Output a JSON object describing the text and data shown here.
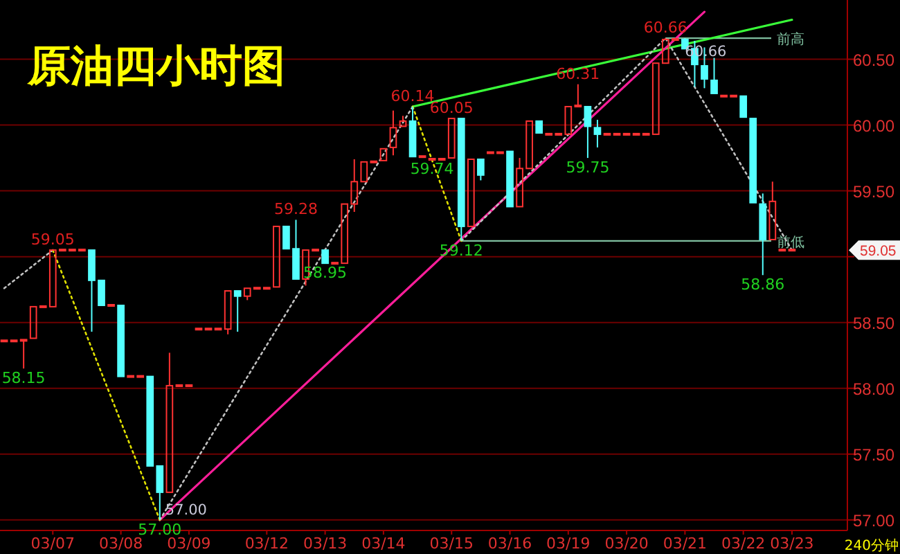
{
  "chart_data": {
    "type": "candlestick",
    "title": "原油四小时图",
    "categories": [
      null,
      null,
      null,
      null,
      null,
      "03/07",
      null,
      null,
      null,
      null,
      null,
      null,
      "03/08",
      null,
      null,
      null,
      null,
      null,
      null,
      "03/09",
      null,
      null,
      null,
      null,
      null,
      null,
      null,
      "03/12",
      null,
      null,
      null,
      null,
      null,
      "03/13",
      null,
      null,
      null,
      null,
      null,
      "03/14",
      null,
      null,
      null,
      null,
      null,
      null,
      "03/15",
      null,
      null,
      null,
      null,
      null,
      "03/16",
      null,
      null,
      null,
      null,
      null,
      "03/19",
      null,
      null,
      null,
      null,
      null,
      "03/20",
      null,
      null,
      null,
      null,
      null,
      "03/21",
      null,
      null,
      null,
      null,
      null,
      "03/22",
      null,
      null,
      null,
      null,
      "03/23"
    ],
    "ohlc": [
      [
        58.36,
        58.36,
        58.36,
        58.36
      ],
      [
        58.36,
        58.36,
        58.36,
        58.36
      ],
      [
        58.36,
        58.37,
        58.15,
        58.37
      ],
      [
        58.38,
        58.62,
        58.38,
        58.62
      ],
      [
        58.62,
        58.62,
        58.62,
        58.62
      ],
      [
        58.62,
        59.05,
        58.62,
        59.05
      ],
      [
        59.05,
        59.05,
        59.05,
        59.05
      ],
      [
        59.05,
        59.05,
        59.05,
        59.05
      ],
      [
        59.05,
        59.05,
        59.05,
        59.05
      ],
      [
        59.05,
        59.05,
        58.43,
        58.82
      ],
      [
        58.82,
        58.82,
        58.63,
        58.63
      ],
      [
        58.63,
        58.63,
        58.63,
        58.63
      ],
      [
        58.63,
        58.63,
        58.09,
        58.09
      ],
      [
        58.09,
        58.09,
        58.09,
        58.09
      ],
      [
        58.09,
        58.09,
        58.09,
        58.09
      ],
      [
        58.09,
        58.09,
        57.41,
        57.41
      ],
      [
        57.41,
        57.41,
        57.0,
        57.21
      ],
      [
        57.21,
        58.27,
        57.21,
        58.02
      ],
      [
        58.02,
        58.02,
        58.02,
        58.02
      ],
      [
        58.02,
        58.02,
        58.02,
        58.02
      ],
      [
        58.45,
        58.45,
        58.45,
        58.45
      ],
      [
        58.45,
        58.45,
        58.45,
        58.45
      ],
      [
        58.45,
        58.45,
        58.45,
        58.45
      ],
      [
        58.45,
        58.74,
        58.41,
        58.74
      ],
      [
        58.74,
        58.74,
        58.43,
        58.7
      ],
      [
        58.7,
        58.76,
        58.67,
        58.76
      ],
      [
        58.76,
        58.76,
        58.76,
        58.76
      ],
      [
        58.76,
        58.76,
        58.76,
        58.76
      ],
      [
        58.77,
        59.23,
        58.77,
        59.23
      ],
      [
        59.23,
        59.23,
        59.06,
        59.06
      ],
      [
        59.06,
        59.28,
        58.83,
        58.83
      ],
      [
        58.83,
        59.05,
        58.78,
        59.05
      ],
      [
        59.05,
        59.05,
        59.05,
        59.05
      ],
      [
        59.05,
        59.05,
        58.95,
        58.95
      ],
      [
        58.95,
        58.95,
        58.95,
        58.95
      ],
      [
        58.95,
        59.4,
        58.95,
        59.4
      ],
      [
        59.4,
        59.74,
        59.34,
        59.57
      ],
      [
        59.57,
        59.72,
        59.57,
        59.72
      ],
      [
        59.72,
        59.72,
        59.72,
        59.72
      ],
      [
        59.73,
        59.82,
        59.73,
        59.82
      ],
      [
        59.83,
        60.11,
        59.77,
        59.98
      ],
      [
        59.99,
        60.07,
        59.99,
        60.03
      ],
      [
        60.03,
        60.14,
        59.76,
        59.76
      ],
      [
        59.76,
        59.76,
        59.76,
        59.76
      ],
      [
        59.74,
        59.74,
        59.74,
        59.74
      ],
      [
        59.74,
        59.74,
        59.74,
        59.74
      ],
      [
        59.75,
        60.05,
        59.75,
        60.05
      ],
      [
        60.05,
        60.05,
        59.12,
        59.23
      ],
      [
        59.23,
        59.74,
        59.23,
        59.74
      ],
      [
        59.74,
        59.74,
        59.58,
        59.62
      ],
      [
        59.79,
        59.79,
        59.79,
        59.79
      ],
      [
        59.79,
        59.79,
        59.79,
        59.79
      ],
      [
        59.8,
        59.8,
        59.38,
        59.38
      ],
      [
        59.38,
        59.75,
        59.38,
        59.67
      ],
      [
        59.67,
        60.03,
        59.67,
        60.03
      ],
      [
        60.03,
        60.03,
        59.94,
        59.94
      ],
      [
        59.93,
        59.93,
        59.93,
        59.93
      ],
      [
        59.93,
        59.93,
        59.93,
        59.93
      ],
      [
        59.93,
        60.14,
        59.93,
        60.14
      ],
      [
        60.14,
        60.31,
        60.14,
        60.15
      ],
      [
        60.14,
        60.14,
        59.75,
        59.99
      ],
      [
        59.98,
        60.04,
        59.83,
        59.93
      ],
      [
        59.93,
        59.93,
        59.93,
        59.93
      ],
      [
        59.93,
        59.93,
        59.93,
        59.93
      ],
      [
        59.93,
        59.93,
        59.93,
        59.93
      ],
      [
        59.93,
        59.93,
        59.93,
        59.93
      ],
      [
        59.93,
        59.93,
        59.93,
        59.93
      ],
      [
        59.93,
        60.47,
        59.93,
        60.47
      ],
      [
        60.47,
        60.66,
        60.47,
        60.65
      ],
      [
        60.65,
        60.65,
        60.65,
        60.65
      ],
      [
        60.65,
        60.66,
        60.58,
        60.58
      ],
      [
        60.58,
        60.64,
        60.29,
        60.46
      ],
      [
        60.45,
        60.59,
        60.28,
        60.35
      ],
      [
        60.34,
        60.51,
        60.24,
        60.24
      ],
      [
        60.22,
        60.22,
        60.22,
        60.22
      ],
      [
        60.22,
        60.22,
        60.22,
        60.22
      ],
      [
        60.22,
        60.22,
        60.06,
        60.06
      ],
      [
        60.05,
        60.05,
        59.41,
        59.41
      ],
      [
        59.4,
        59.48,
        58.86,
        59.13
      ],
      [
        59.13,
        59.57,
        59.13,
        59.42
      ],
      [
        59.05,
        59.05,
        59.05,
        59.05
      ],
      [
        59.05,
        59.05,
        59.05,
        59.05
      ]
    ],
    "ylim": [
      56.92,
      60.95
    ],
    "yticks": [
      {
        "value": 57,
        "label": "57.00"
      },
      {
        "value": 57.5,
        "label": "57.50"
      },
      {
        "value": 58,
        "label": "58.00"
      },
      {
        "value": 58.5,
        "label": "58.50"
      },
      {
        "value": 59,
        "label": null
      },
      {
        "value": 59.5,
        "label": "59.50"
      },
      {
        "value": 60,
        "label": "60.00"
      },
      {
        "value": 60.5,
        "label": "60.50"
      }
    ],
    "grid": "y",
    "series": [
      {
        "type": "line",
        "color": "#39ff39",
        "values": [
          null,
          null,
          null,
          null,
          null,
          null,
          null,
          null,
          null,
          null,
          null,
          null,
          null,
          null,
          null,
          null,
          null,
          null,
          null,
          null,
          null,
          null,
          null,
          null,
          null,
          null,
          null,
          null,
          null,
          null,
          null,
          null,
          null,
          null,
          null,
          null,
          null,
          null,
          null,
          null,
          null,
          null,
          60.14,
          null,
          null,
          null,
          null,
          null,
          null,
          null,
          null,
          null,
          null,
          null,
          null,
          null,
          null,
          null,
          null,
          null,
          null,
          null,
          null,
          null,
          null,
          null,
          null,
          null,
          null,
          null,
          null,
          null,
          null,
          null,
          null,
          null,
          null,
          null,
          null,
          null,
          null,
          60.8
        ]
      },
      {
        "type": "line",
        "color": "#ff1e9a",
        "values": [
          null,
          null,
          null,
          null,
          null,
          null,
          null,
          null,
          null,
          null,
          null,
          null,
          null,
          null,
          null,
          null,
          57.0,
          null,
          null,
          null,
          null,
          null,
          null,
          null,
          null,
          null,
          null,
          null,
          null,
          null,
          null,
          null,
          null,
          null,
          null,
          null,
          null,
          null,
          null,
          null,
          null,
          null,
          null,
          null,
          null,
          null,
          null,
          null,
          null,
          null,
          null,
          null,
          null,
          null,
          null,
          null,
          null,
          null,
          null,
          null,
          null,
          null,
          null,
          null,
          null,
          null,
          null,
          null,
          null,
          null,
          null,
          null,
          60.86,
          null,
          null,
          null,
          null,
          null,
          null,
          null,
          null,
          null
        ]
      },
      {
        "type": "line",
        "color": "#c0c0c0",
        "line_style": "dotted",
        "values": [
          58.76,
          null,
          null,
          null,
          null,
          59.05,
          null,
          null,
          null,
          null,
          null,
          null,
          null,
          null,
          null,
          null,
          null,
          null,
          null,
          null,
          null,
          null,
          null,
          null,
          null,
          null,
          null,
          null,
          null,
          null,
          null,
          null,
          null,
          null,
          null,
          null,
          null,
          null,
          null,
          null,
          null,
          null,
          null,
          null,
          null,
          null,
          null,
          null,
          null,
          null,
          null,
          null,
          null,
          null,
          null,
          null,
          null,
          null,
          null,
          null,
          null,
          null,
          null,
          null,
          null,
          null,
          null,
          null,
          null,
          null,
          null,
          null,
          null,
          null,
          null,
          null,
          null,
          null,
          null,
          null,
          null,
          null
        ]
      },
      {
        "type": "line",
        "color": "#c0c0c0",
        "line_style": "dotted",
        "values": [
          null,
          null,
          null,
          null,
          null,
          null,
          null,
          null,
          null,
          null,
          null,
          null,
          null,
          null,
          null,
          null,
          57.0,
          null,
          null,
          null,
          null,
          null,
          null,
          null,
          null,
          null,
          null,
          null,
          null,
          null,
          null,
          null,
          null,
          null,
          null,
          null,
          null,
          null,
          null,
          null,
          null,
          null,
          60.14,
          null,
          null,
          null,
          null,
          null,
          null,
          null,
          null,
          null,
          null,
          null,
          null,
          null,
          null,
          null,
          null,
          null,
          null,
          null,
          null,
          null,
          null,
          null,
          null,
          null,
          null,
          null,
          null,
          null,
          null,
          null,
          null,
          null,
          null,
          null,
          null,
          null,
          null,
          null
        ]
      },
      {
        "type": "line",
        "color": "#c0c0c0",
        "line_style": "dotted",
        "values": [
          null,
          null,
          null,
          null,
          null,
          null,
          null,
          null,
          null,
          null,
          null,
          null,
          null,
          null,
          null,
          null,
          null,
          null,
          null,
          null,
          null,
          null,
          null,
          null,
          null,
          null,
          null,
          null,
          null,
          null,
          null,
          null,
          null,
          null,
          null,
          null,
          null,
          null,
          null,
          null,
          null,
          null,
          null,
          null,
          null,
          null,
          null,
          59.12,
          null,
          null,
          null,
          null,
          null,
          null,
          null,
          null,
          null,
          null,
          null,
          null,
          null,
          null,
          null,
          null,
          null,
          null,
          null,
          null,
          60.66,
          null,
          null,
          null,
          null,
          null,
          null,
          null,
          null,
          null,
          null,
          null,
          null,
          59.05
        ]
      },
      {
        "type": "line",
        "color": "#e0e000",
        "line_style": "dotted",
        "values": [
          null,
          null,
          null,
          null,
          null,
          59.05,
          null,
          null,
          null,
          null,
          null,
          null,
          null,
          null,
          null,
          null,
          57.0,
          null,
          null,
          null,
          null,
          null,
          null,
          null,
          null,
          null,
          null,
          null,
          null,
          null,
          null,
          null,
          null,
          null,
          null,
          null,
          null,
          null,
          null,
          null,
          null,
          null,
          null,
          null,
          null,
          null,
          null,
          null,
          null,
          null,
          null,
          null,
          null,
          null,
          null,
          null,
          null,
          null,
          null,
          null,
          null,
          null,
          null,
          null,
          null,
          null,
          null,
          null,
          null,
          null,
          null,
          null,
          null,
          null,
          null,
          null,
          null,
          null,
          null,
          null,
          null,
          null
        ]
      },
      {
        "type": "line",
        "color": "#e0e000",
        "line_style": "dotted",
        "values": [
          null,
          null,
          null,
          null,
          null,
          null,
          null,
          null,
          null,
          null,
          null,
          null,
          null,
          null,
          null,
          null,
          null,
          null,
          null,
          null,
          null,
          null,
          null,
          null,
          null,
          null,
          null,
          null,
          null,
          null,
          null,
          null,
          null,
          null,
          null,
          null,
          null,
          null,
          null,
          null,
          null,
          null,
          60.14,
          null,
          null,
          null,
          null,
          59.12,
          null,
          null,
          null,
          null,
          null,
          null,
          null,
          null,
          null,
          null,
          null,
          null,
          null,
          null,
          null,
          null,
          null,
          null,
          null,
          null,
          null,
          null,
          null,
          null,
          null,
          null,
          null,
          null,
          null,
          null,
          null,
          null,
          null,
          null
        ]
      }
    ],
    "ref_lines": [
      {
        "axis": "y",
        "value": 60.66,
        "label": "前高",
        "color": "#7fbf9f"
      },
      {
        "axis": "y",
        "value": 59.12,
        "label": "前低",
        "color": "#7fbf9f"
      }
    ],
    "annotations": [
      {
        "text": "58.15",
        "y": 58.15
      },
      {
        "text": "59.05",
        "x": "03/07",
        "y": 59.05
      },
      {
        "text": "57.00",
        "y": 57.0
      },
      {
        "text": "59.28",
        "y": 59.28
      },
      {
        "text": "58.95",
        "y": 58.95
      },
      {
        "text": "60.14",
        "y": 60.14
      },
      {
        "text": "59.74",
        "y": 59.74
      },
      {
        "text": "60.05",
        "y": 60.05
      },
      {
        "text": "59.12",
        "y": 59.12
      },
      {
        "text": "60.31",
        "y": 60.31
      },
      {
        "text": "59.75",
        "y": 59.75
      },
      {
        "text": "60.66",
        "y": 60.66
      },
      {
        "text": "60.66",
        "y": 60.66
      },
      {
        "text": "58.86",
        "y": 58.86
      },
      "57.00",
      "59.05",
      "240分钟"
    ]
  }
}
